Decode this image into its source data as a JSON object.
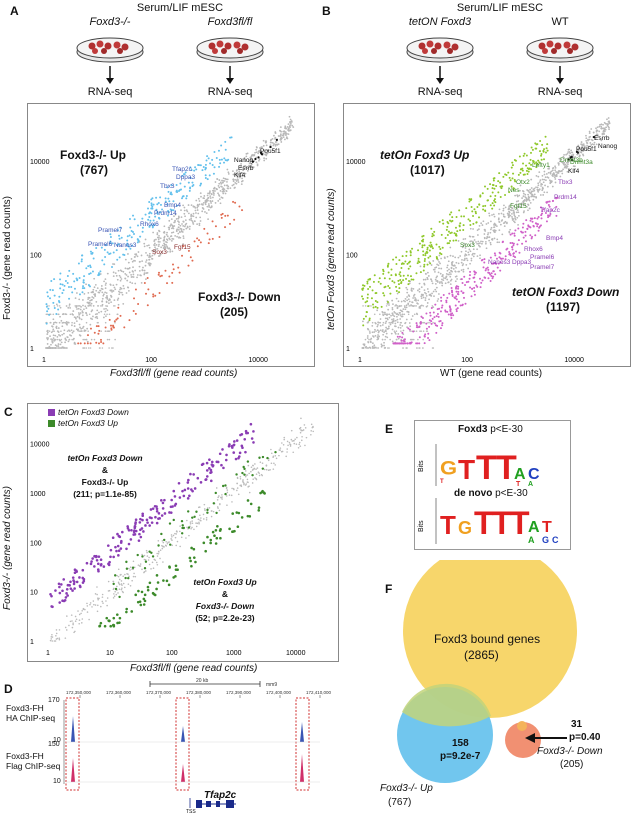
{
  "panels": {
    "a": {
      "letter": "A",
      "header": "Serum/LIF mESC",
      "dish_left": "Foxd3-/-",
      "dish_right": "Foxd3fl/fl",
      "rna_left": "RNA-seq",
      "rna_right": "RNA-seq",
      "up_label": "Foxd3-/- Up",
      "up_count": "(767)",
      "down_label": "Foxd3-/- Down",
      "down_count": "(205)",
      "xlabel": "Foxd3fl/fl (gene read counts)",
      "ylabel": "Foxd3-/- (gene read counts)",
      "genes": [
        "Pou5f1",
        "Nanog",
        "Esrrb",
        "Klf4",
        "Tfap2c",
        "Dppa3",
        "Tbx3",
        "Bmp4",
        "Prdm14",
        "Rhox6",
        "Pramel7",
        "Pramel6",
        "Nanos3",
        "Sox3",
        "Fgf15"
      ]
    },
    "b": {
      "letter": "B",
      "header": "Serum/LIF mESC",
      "dish_left": "tetON Foxd3",
      "dish_right": "WT",
      "rna_left": "RNA-seq",
      "rna_right": "RNA-seq",
      "up_label": "tetOn Foxd3 Up",
      "up_count": "(1017)",
      "down_label": "tetON Foxd3 Down",
      "down_count": "(1197)",
      "xlabel": "WT (gene read counts)",
      "ylabel": "tetOn Foxd3 (gene read counts)",
      "genes": [
        "Esrrb",
        "Nanog",
        "Pou5f1",
        "Klf4",
        "Dnmt3b",
        "Dnmt3a",
        "Lefty1",
        "Otx2",
        "Nes",
        "Fgf15",
        "Sox3",
        "Tbx3",
        "Prdm14",
        "Tfap2c",
        "Bmp4",
        "Rhox6",
        "Pramel6",
        "Pramel7",
        "Nanos3",
        "Dppa3"
      ]
    },
    "c": {
      "letter": "C",
      "legend_down": "tetOn Foxd3 Down",
      "legend_up": "tetOn Foxd3 Up",
      "ann1_l1": "tetOn Foxd3 Down",
      "ann1_l2": "&",
      "ann1_l3": "Foxd3-/- Up",
      "ann1_l4": "(211; p=1.1e-85)",
      "ann2_l1": "tetOn Foxd3 Up",
      "ann2_l2": "&",
      "ann2_l3": "Foxd3-/- Down",
      "ann2_l4": "(52; p=2.2e-23)",
      "xlabel": "Foxd3fl/fl (gene read counts)",
      "ylabel": "Foxd3-/- (gene read counts)"
    },
    "d": {
      "letter": "D",
      "track1_l1": "Foxd3-FH",
      "track1_l2": "HA ChIP-seq",
      "track2_l1": "Foxd3-FH",
      "track2_l2": "Flag ChIP-seq",
      "scale": "20 kb",
      "gene": "Tfap2c",
      "tss": "TSS",
      "coords": [
        "172,350,000",
        "172,360,000",
        "172,370,000",
        "172,380,000",
        "172,390,000",
        "172,400,000",
        "172,410,000"
      ],
      "ymax1": "170",
      "ymin1": "10",
      "ymax2": "150",
      "ymin2": "10"
    },
    "e": {
      "letter": "E",
      "title1": "Foxd3",
      "p1": "p<E-30",
      "title2": "de novo",
      "p2": "p<E-30",
      "bits": "Bits"
    },
    "f": {
      "letter": "F",
      "big_label": "Foxd3 bound genes",
      "big_count": "(2865)",
      "overlap1": "158",
      "overlap1_p": "p=9.2e-7",
      "overlap2": "31",
      "overlap2_p": "p=0.40",
      "up_label": "Foxd3-/- Up",
      "up_count": "(767)",
      "down_label": "Foxd3-/- Down",
      "down_count": "(205)"
    }
  },
  "ticks": {
    "x": [
      "1",
      "100",
      "10000"
    ],
    "y": [
      "1",
      "100",
      "10000"
    ],
    "c_x": [
      "1",
      "10",
      "100",
      "1000",
      "10000"
    ],
    "c_y": [
      "1",
      "10",
      "100",
      "1000",
      "10000"
    ]
  },
  "colors": {
    "up_blue": "#3a55b4",
    "down_red": "#8b2a2a",
    "green": "#3c8a2a",
    "purple": "#8a3cb4",
    "gray_pts": "#b8b8b8",
    "venn_yellow": "#f7d66b",
    "venn_blue": "#62c0ec",
    "venn_orange": "#f08a6a"
  }
}
